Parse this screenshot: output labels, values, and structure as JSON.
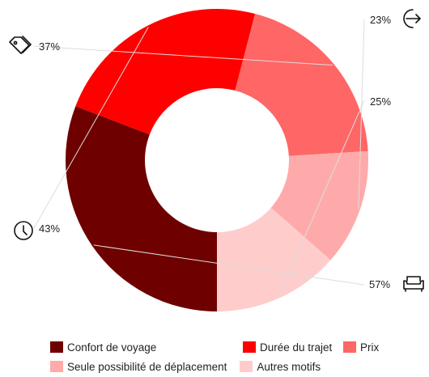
{
  "chart_data": {
    "type": "pie",
    "donut": true,
    "title": "",
    "legend_position": "bottom",
    "categories": [
      "Confort de voyage",
      "Durée du trajet",
      "Prix",
      "Seule possibilité de déplacement",
      "Autres motifs"
    ],
    "values": [
      57,
      43,
      37,
      23,
      25
    ],
    "labels": [
      "57%",
      "43%",
      "37%",
      "23%",
      "25%"
    ],
    "colors": [
      "#6e0000",
      "#ff0000",
      "#ff6666",
      "#ffaaaa",
      "#ffcccc"
    ],
    "icons": [
      "sofa-icon",
      "clock-icon",
      "price-tag-icon",
      "arrow-right-icon",
      ""
    ]
  }
}
